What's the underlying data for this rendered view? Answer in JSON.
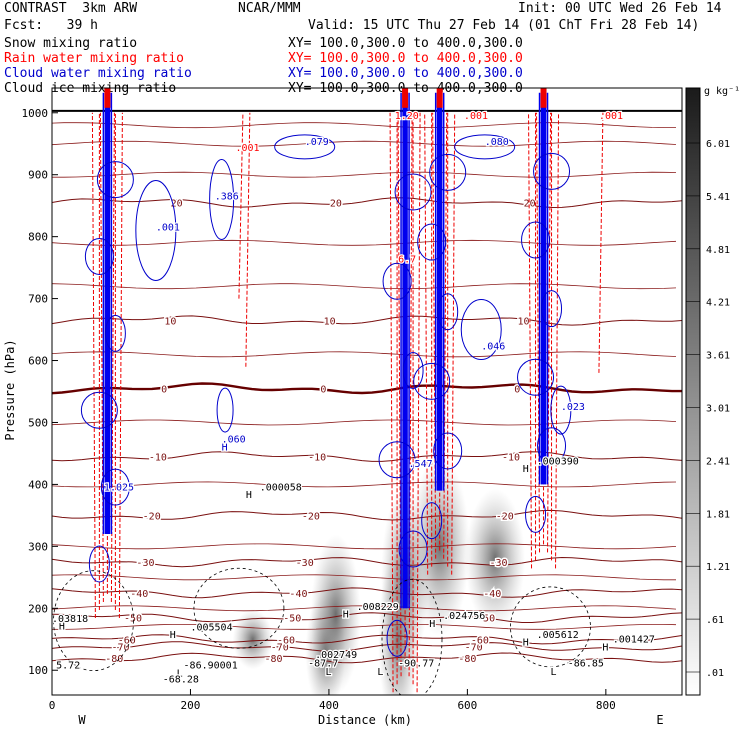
{
  "header": {
    "model": "CONTRAST  3km ARW",
    "center": "NCAR/MMM",
    "init": "Init: 00 UTC Wed 26 Feb 14",
    "fcst": "Fcst:   39 h",
    "valid": "Valid: 15 UTC Thu 27 Feb 14 (01 ChT Fri 28 Feb 14)"
  },
  "fields": [
    {
      "label": "Snow mixing ratio",
      "xy": "XY= 100.0,300.0 to 400.0,300.0",
      "color": "#000000"
    },
    {
      "label": "Rain water mixing ratio",
      "xy": "XY= 100.0,300.0 to 400.0,300.0",
      "color": "#ff0000"
    },
    {
      "label": "Cloud water mixing ratio",
      "xy": "XY= 100.0,300.0 to 400.0,300.0",
      "color": "#0000cc"
    },
    {
      "label": "Cloud ice mixing ratio",
      "xy": "XY= 100.0,300.0 to 400.0,300.0",
      "color": "#000000"
    }
  ],
  "chart_data": {
    "type": "contour cross-section",
    "xlabel": "Distance (km)",
    "ylabel": "Pressure (hPa)",
    "xlim": [
      0,
      910
    ],
    "ylim": [
      1040,
      60
    ],
    "xticks": [
      "0",
      "200",
      "400",
      "600",
      "800"
    ],
    "yticks": [
      "100",
      "200",
      "300",
      "400",
      "500",
      "600",
      "700",
      "800",
      "900",
      "1000"
    ],
    "x_end_labels": {
      "left": "W",
      "right": "E"
    },
    "colorbar": {
      "unit": "g kg⁻¹",
      "ticks": [
        "6.01",
        "5.41",
        "4.81",
        "4.21",
        "3.61",
        "3.01",
        "2.41",
        "1.81",
        "1.21",
        ".61",
        ".01"
      ]
    },
    "temperature_isotherms": [
      {
        "label": "-80",
        "p": 120
      },
      {
        "label": "-70",
        "p": 138
      },
      {
        "label": "-60",
        "p": 150
      },
      {
        "label": "-50",
        "p": 185
      },
      {
        "label": "-40",
        "p": 225
      },
      {
        "label": "-30",
        "p": 275
      },
      {
        "label": "-20",
        "p": 350
      },
      {
        "label": "-10",
        "p": 445
      },
      {
        "label": "0",
        "p": 555
      },
      {
        "label": "10",
        "p": 665
      },
      {
        "label": "20",
        "p": 855
      }
    ],
    "convective_columns": [
      {
        "x": 80,
        "top": 320,
        "bottom": 1000
      },
      {
        "x": 510,
        "top": 200,
        "bottom": 1000
      },
      {
        "x": 560,
        "top": 390,
        "bottom": 1000
      },
      {
        "x": 710,
        "top": 400,
        "bottom": 1000
      }
    ],
    "max_labels": [
      {
        "text": "L",
        "x": 180,
        "p": 90,
        "color": "#000000"
      },
      {
        "text": "-68.28",
        "x": 160,
        "p": 80,
        "color": "#000000"
      },
      {
        "text": "5.72",
        "x": 6,
        "p": 103,
        "color": "#000000"
      },
      {
        "text": "-86.90001",
        "x": 190,
        "p": 103,
        "color": "#000000"
      },
      {
        "text": "L",
        "x": 395,
        "p": 92,
        "color": "#000000"
      },
      {
        "text": "-87.7",
        "x": 370,
        "p": 106,
        "color": "#000000"
      },
      {
        "text": ".002749",
        "x": 380,
        "p": 120,
        "color": "#000000"
      },
      {
        "text": "L",
        "x": 470,
        "p": 92,
        "color": "#000000"
      },
      {
        "text": "-90.77",
        "x": 500,
        "p": 106,
        "color": "#000000"
      },
      {
        "text": "L",
        "x": 720,
        "p": 92,
        "color": "#000000"
      },
      {
        "text": "-86.85",
        "x": 745,
        "p": 106,
        "color": "#000000"
      },
      {
        "text": "H",
        "x": 795,
        "p": 132,
        "color": "#000000"
      },
      {
        "text": ".001427",
        "x": 810,
        "p": 145,
        "color": "#000000"
      },
      {
        "text": "H",
        "x": 680,
        "p": 140,
        "color": "#000000"
      },
      {
        "text": ".005612",
        "x": 700,
        "p": 152,
        "color": "#000000"
      },
      {
        "text": "H",
        "x": 170,
        "p": 152,
        "color": "#000000"
      },
      {
        "text": ".005504",
        "x": 200,
        "p": 164,
        "color": "#000000"
      },
      {
        "text": "H",
        "x": 10,
        "p": 166,
        "color": "#000000"
      },
      {
        "text": ".03818",
        "x": 0,
        "p": 178,
        "color": "#000000"
      },
      {
        "text": "H",
        "x": 545,
        "p": 170,
        "color": "#000000"
      },
      {
        "text": ".024756",
        "x": 565,
        "p": 183,
        "color": "#000000"
      },
      {
        "text": "H",
        "x": 420,
        "p": 185,
        "color": "#000000"
      },
      {
        "text": ".008229",
        "x": 440,
        "p": 197,
        "color": "#000000"
      },
      {
        "text": "H",
        "x": 280,
        "p": 378,
        "color": "#000000"
      },
      {
        "text": ".000058",
        "x": 300,
        "p": 390,
        "color": "#000000"
      },
      {
        "text": "1.025",
        "x": 75,
        "p": 390,
        "color": "#0000cc"
      },
      {
        "text": "H",
        "x": 680,
        "p": 420,
        "color": "#000000"
      },
      {
        "text": ".000390",
        "x": 700,
        "p": 432,
        "color": "#000000"
      },
      {
        "text": "H",
        "x": 245,
        "p": 455,
        "color": "#0000cc"
      },
      {
        "text": ".060",
        "x": 245,
        "p": 468,
        "color": "#0000cc"
      },
      {
        "text": ".547",
        "x": 515,
        "p": 428,
        "color": "#0000cc"
      },
      {
        "text": ".023",
        "x": 735,
        "p": 520,
        "color": "#0000cc"
      },
      {
        "text": ".046",
        "x": 620,
        "p": 618,
        "color": "#0000cc"
      },
      {
        "text": "6.7",
        "x": 500,
        "p": 758,
        "color": "#ff0000"
      },
      {
        "text": ".386",
        "x": 235,
        "p": 860,
        "color": "#0000cc"
      },
      {
        "text": ".079",
        "x": 365,
        "p": 948,
        "color": "#0000cc"
      },
      {
        "text": ".080",
        "x": 625,
        "p": 948,
        "color": "#0000cc"
      },
      {
        "text": "1.20",
        "x": 495,
        "p": 990,
        "color": "#ff0000"
      },
      {
        "text": ".001",
        "x": 265,
        "p": 938,
        "color": "#ff0000"
      },
      {
        "text": ".001",
        "x": 595,
        "p": 990,
        "color": "#ff0000"
      },
      {
        "text": ".001",
        "x": 790,
        "p": 990,
        "color": "#ff0000"
      },
      {
        "text": ".001",
        "x": 150,
        "p": 810,
        "color": "#0000cc"
      }
    ]
  }
}
